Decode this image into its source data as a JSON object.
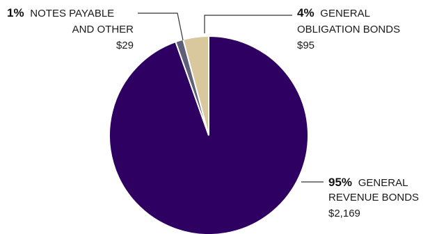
{
  "chart_data": {
    "type": "pie",
    "slices": [
      {
        "pct_label": "95%",
        "name_lines": [
          "GENERAL",
          "REVENUE BONDS"
        ],
        "amount": "$2,169",
        "value": 2169,
        "color": "#2e0061"
      },
      {
        "pct_label": "1%",
        "name_lines": [
          "NOTES PAYABLE",
          "AND OTHER"
        ],
        "amount": "$29",
        "value": 29,
        "color": "#5f5f7a"
      },
      {
        "pct_label": "4%",
        "name_lines": [
          "GENERAL",
          "OBLIGATION BONDS"
        ],
        "amount": "$95",
        "value": 95,
        "color": "#d9c89e"
      }
    ]
  }
}
